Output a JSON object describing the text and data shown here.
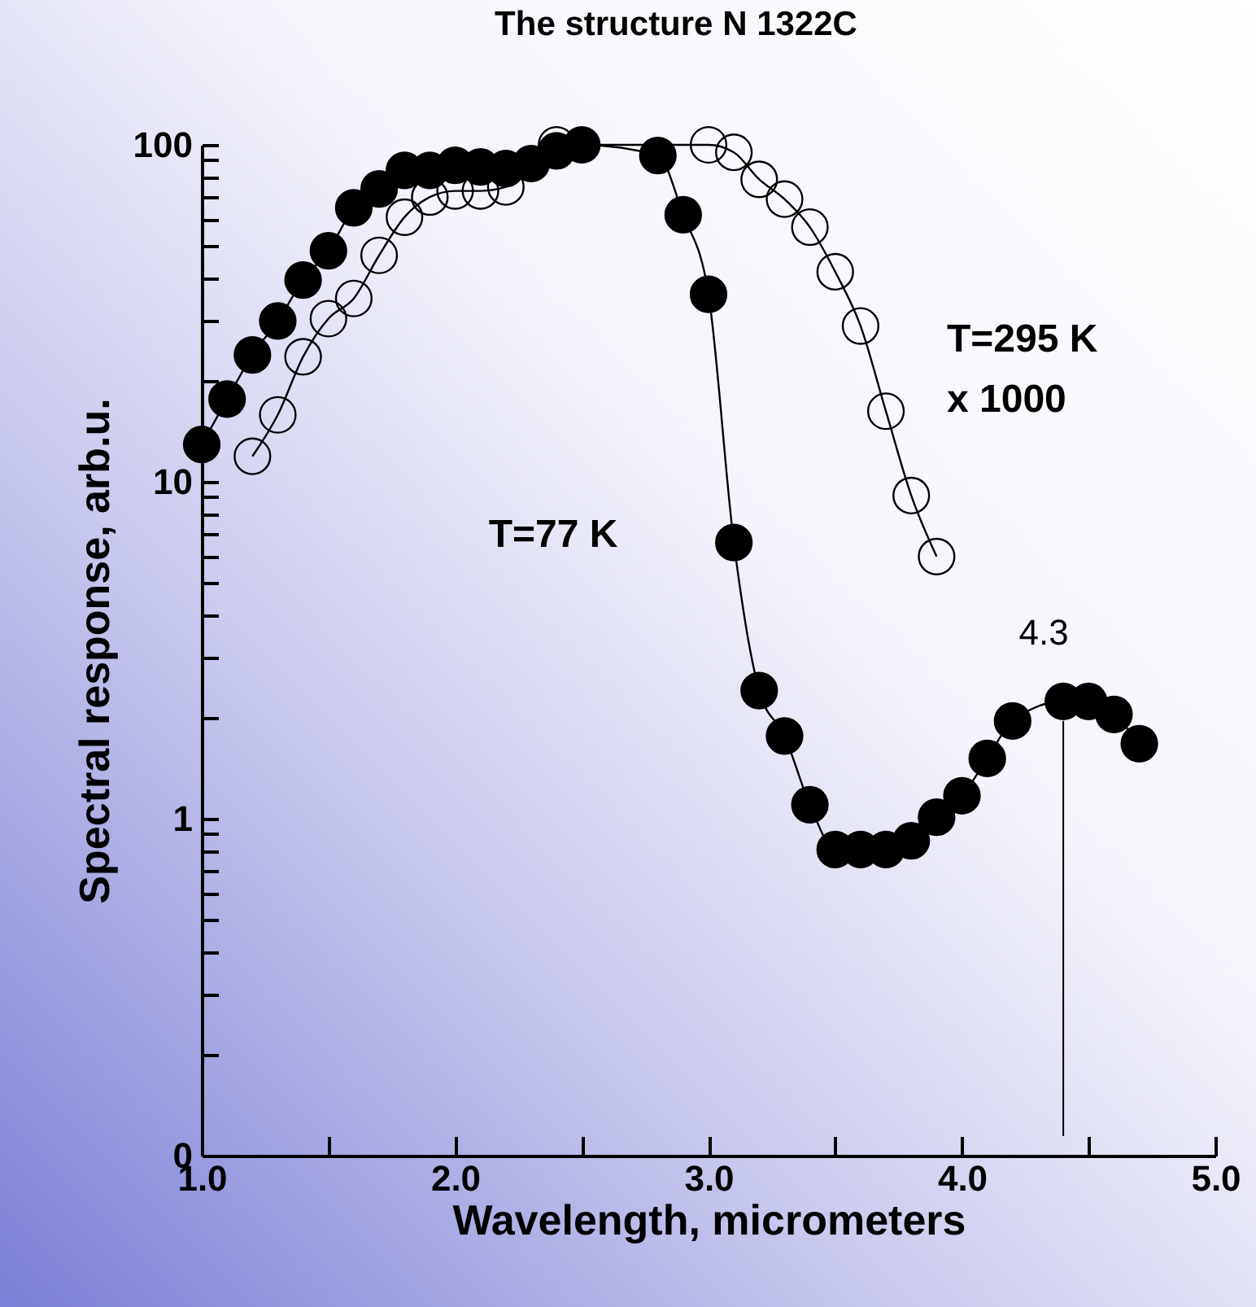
{
  "chart_data": {
    "type": "line",
    "title": "The structure N 1322C",
    "xlabel": "Wavelength, micrometers",
    "ylabel": "Spectral response, arb.u.",
    "log": "y",
    "marker": "circle",
    "line_style": "solid",
    "grid": false,
    "xlim": [
      1,
      5
    ],
    "xticks": [
      {
        "value": 1,
        "label": "1.0"
      },
      {
        "value": 1.5,
        "label": null
      },
      {
        "value": 2,
        "label": "2.0"
      },
      {
        "value": 2.5,
        "label": null
      },
      {
        "value": 3,
        "label": "3.0"
      },
      {
        "value": 3.5,
        "label": null
      },
      {
        "value": 4,
        "label": "4.0"
      },
      {
        "value": 4.5,
        "label": null
      },
      {
        "value": 5,
        "label": "5.0"
      }
    ],
    "ylim": [
      0.1,
      100
    ],
    "yticks": [
      {
        "value": 0.1,
        "label": "0"
      },
      {
        "value": 0.2,
        "label": null
      },
      {
        "value": 0.3,
        "label": null
      },
      {
        "value": 0.4,
        "label": null
      },
      {
        "value": 0.5,
        "label": null
      },
      {
        "value": 0.6,
        "label": null
      },
      {
        "value": 0.7,
        "label": null
      },
      {
        "value": 0.8,
        "label": null
      },
      {
        "value": 0.9,
        "label": null
      },
      1,
      {
        "value": 2,
        "label": null
      },
      {
        "value": 3,
        "label": null
      },
      {
        "value": 4,
        "label": null
      },
      {
        "value": 5,
        "label": null
      },
      {
        "value": 6,
        "label": null
      },
      {
        "value": 7,
        "label": null
      },
      {
        "value": 8,
        "label": null
      },
      {
        "value": 9,
        "label": null
      },
      10,
      {
        "value": 20,
        "label": null
      },
      {
        "value": 30,
        "label": null
      },
      {
        "value": 40,
        "label": null
      },
      {
        "value": 50,
        "label": null
      },
      {
        "value": 60,
        "label": null
      },
      {
        "value": 70,
        "label": null
      },
      {
        "value": 80,
        "label": null
      },
      {
        "value": 90,
        "label": null
      },
      100
    ],
    "series": [
      {
        "name": "T=77 K",
        "color": "#000000",
        "x": [
          1.0,
          1.1,
          1.2,
          1.3,
          1.4,
          1.5,
          1.6,
          1.7,
          1.8,
          1.9,
          2.0,
          2.1,
          2.2,
          2.3,
          2.4,
          2.5,
          2.8,
          2.9,
          3.0,
          3.1,
          3.2,
          3.3,
          3.4,
          3.5,
          3.6,
          3.7,
          3.8,
          3.9,
          4.0,
          4.1,
          4.2,
          4.4,
          4.5,
          4.6,
          4.7
        ],
        "values": [
          12.9,
          17.6,
          23.8,
          30,
          39.7,
          48.5,
          65,
          74,
          84,
          84,
          87,
          86,
          85,
          88,
          96,
          100,
          93,
          62,
          36,
          6.6,
          2.4,
          1.76,
          1.1,
          0.81,
          0.81,
          0.81,
          0.86,
          1.01,
          1.17,
          1.51,
          1.95,
          2.23,
          2.23,
          2.04,
          1.67
        ]
      },
      {
        "name": "T=295 K\nx 1000",
        "color": "#000000",
        "x": [
          1.2,
          1.3,
          1.4,
          1.5,
          1.6,
          1.7,
          1.8,
          1.9,
          2.0,
          2.1,
          2.2,
          2.4,
          3.0,
          3.1,
          3.2,
          3.3,
          3.4,
          3.5,
          3.6,
          3.7,
          3.8,
          3.9
        ],
        "values": [
          11.9,
          15.8,
          23.5,
          30.5,
          35,
          47,
          61,
          70,
          73,
          73,
          75,
          100,
          100,
          95,
          79,
          69,
          57,
          42,
          29,
          16.2,
          9.1,
          6.0
        ]
      }
    ],
    "ref_lines": [
      {
        "axis": "x",
        "value": 4.4
      }
    ],
    "annotations": [
      "4.3"
    ]
  }
}
